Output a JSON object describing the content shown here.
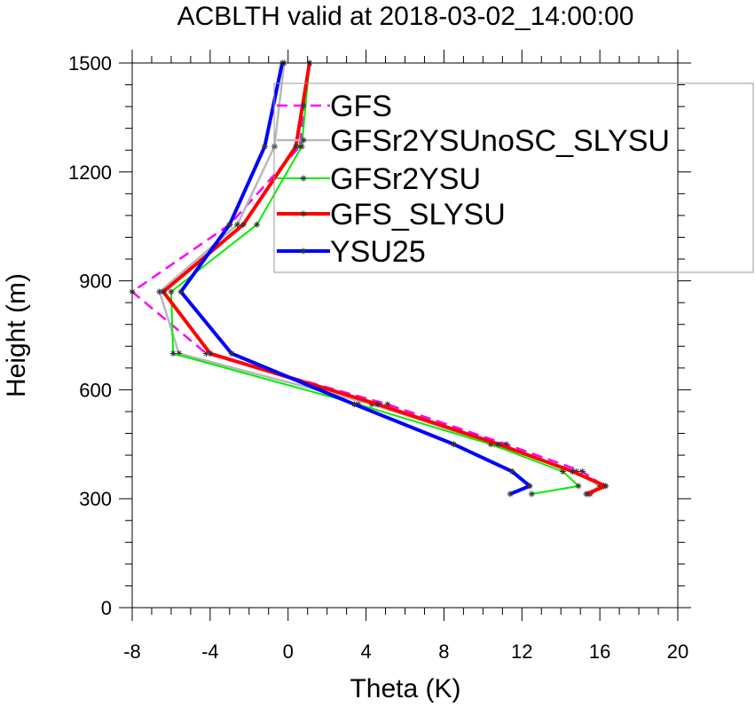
{
  "chart_data": {
    "type": "line",
    "title": "ACBLTH valid at 2018-03-02_14:00:00",
    "xlabel": "Theta (K)",
    "ylabel": "Height (m)",
    "xlim": [
      -8,
      20
    ],
    "ylim": [
      0,
      1500
    ],
    "xticks": [
      -8,
      -4,
      0,
      4,
      8,
      12,
      16,
      20
    ],
    "yticks": [
      0,
      300,
      600,
      900,
      1200,
      1500
    ],
    "grid": false,
    "legend_position": "top-right",
    "series": [
      {
        "name": "GFS",
        "color": "#ff00ff",
        "dash": "dashed",
        "width": 2.5,
        "x": [
          15.5,
          16.2,
          15.1,
          11.2,
          5.1,
          -4.2,
          -8.0,
          -3.0,
          0.6,
          1.1
        ],
        "y": [
          313,
          335,
          375,
          450,
          560,
          700,
          870,
          1055,
          1270,
          1500
        ]
      },
      {
        "name": "GFSr2YSUnoSC_SLYSU",
        "color": "#b8b8b8",
        "dash": "solid",
        "width": 2.5,
        "x": [
          15.4,
          16.0,
          14.8,
          10.6,
          4.3,
          -5.6,
          -6.6,
          -2.6,
          -0.7,
          -0.2
        ],
        "y": [
          313,
          335,
          375,
          450,
          560,
          700,
          870,
          1055,
          1270,
          1500
        ]
      },
      {
        "name": "GFSr2YSU",
        "color": "#00ee00",
        "dash": "solid",
        "width": 2,
        "x": [
          12.5,
          14.9,
          14.1,
          10.4,
          3.6,
          -5.9,
          -6.0,
          -1.6,
          0.7,
          1.1
        ],
        "y": [
          313,
          335,
          375,
          450,
          560,
          700,
          870,
          1055,
          1270,
          1500
        ]
      },
      {
        "name": "GFS_SLYSU",
        "color": "#ff0000",
        "dash": "solid",
        "width": 4,
        "x": [
          15.3,
          16.3,
          14.6,
          10.8,
          4.6,
          -4.0,
          -6.4,
          -2.3,
          0.4,
          1.1
        ],
        "y": [
          313,
          335,
          375,
          450,
          560,
          700,
          870,
          1055,
          1270,
          1500
        ]
      },
      {
        "name": "YSU25",
        "color": "#0000ff",
        "dash": "solid",
        "width": 4,
        "x": [
          11.4,
          12.4,
          11.5,
          8.5,
          3.4,
          -2.9,
          -5.5,
          -3.0,
          -1.2,
          -0.3
        ],
        "y": [
          313,
          335,
          375,
          450,
          560,
          700,
          870,
          1055,
          1270,
          1500
        ]
      }
    ]
  }
}
